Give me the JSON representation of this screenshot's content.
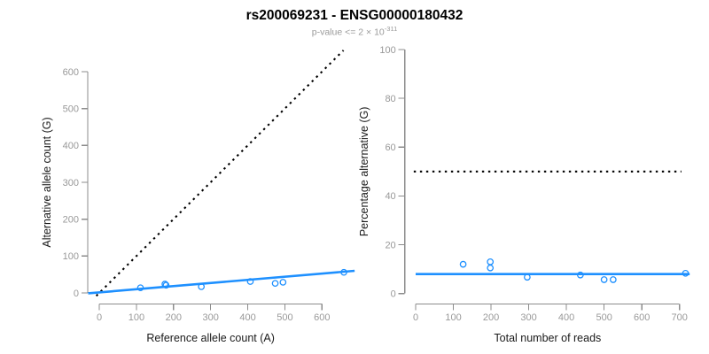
{
  "header": {
    "title": "rs200069231 - ENSG00000180432",
    "subtitle_prefix": "p-value <= 2 × 10",
    "subtitle_exponent": "-311"
  },
  "colors": {
    "accent_blue": "#1E90FF",
    "dashed_black": "#000000",
    "axis_line": "#8c8c8c",
    "tick_label": "#999999",
    "axis_title": "#1a1a1a",
    "title_black": "#000000",
    "subtitle_gray": "#9a9a9a",
    "background": "#ffffff"
  },
  "chart_data": [
    {
      "type": "scatter",
      "panel": "left",
      "xlabel": "Reference allele count (A)",
      "ylabel": "Alternative allele count (G)",
      "xlim": [
        0,
        660
      ],
      "ylim": [
        0,
        600
      ],
      "xticks": [
        0,
        100,
        200,
        300,
        400,
        500,
        600
      ],
      "yticks": [
        0,
        100,
        200,
        300,
        400,
        500,
        600
      ],
      "grid": false,
      "legend": false,
      "points": [
        [
          111,
          14
        ],
        [
          177,
          24
        ],
        [
          180,
          21
        ],
        [
          275,
          17
        ],
        [
          407,
          31
        ],
        [
          474,
          26
        ],
        [
          495,
          29
        ],
        [
          659,
          56
        ]
      ],
      "lines": [
        {
          "name": "identity-line",
          "slope": 1,
          "intercept": 0,
          "x_range": [
            -8,
            658
          ],
          "dash": "dotted",
          "color": "#000000",
          "width": 2.1
        },
        {
          "name": "fit-line",
          "slope": 0.085,
          "intercept": 1.5,
          "x_range": [
            -30,
            688
          ],
          "dash": "solid",
          "color": "#1E90FF",
          "width": 2.6
        }
      ]
    },
    {
      "type": "scatter",
      "panel": "right",
      "xlabel": "Total number of reads",
      "ylabel": "Percentage alternative (G)",
      "xlim": [
        0,
        720
      ],
      "ylim": [
        0,
        100
      ],
      "xticks": [
        0,
        100,
        200,
        300,
        400,
        500,
        600,
        700
      ],
      "yticks": [
        0,
        20,
        40,
        60,
        80,
        100
      ],
      "grid": false,
      "legend": false,
      "points": [
        [
          126,
          12
        ],
        [
          198,
          13
        ],
        [
          198,
          10.5
        ],
        [
          296,
          6.7
        ],
        [
          437,
          7.6
        ],
        [
          500,
          5.7
        ],
        [
          524,
          5.7
        ],
        [
          716,
          8.3
        ]
      ],
      "lines": [
        {
          "name": "fifty-percent-line",
          "slope": 0,
          "intercept": 50,
          "x_range": [
            -5,
            705
          ],
          "dash": "dotted",
          "color": "#000000",
          "width": 2.1
        },
        {
          "name": "fit-line",
          "slope": 0,
          "intercept": 8,
          "x_range": [
            0,
            727
          ],
          "dash": "solid",
          "color": "#1E90FF",
          "width": 2.6
        }
      ]
    }
  ]
}
